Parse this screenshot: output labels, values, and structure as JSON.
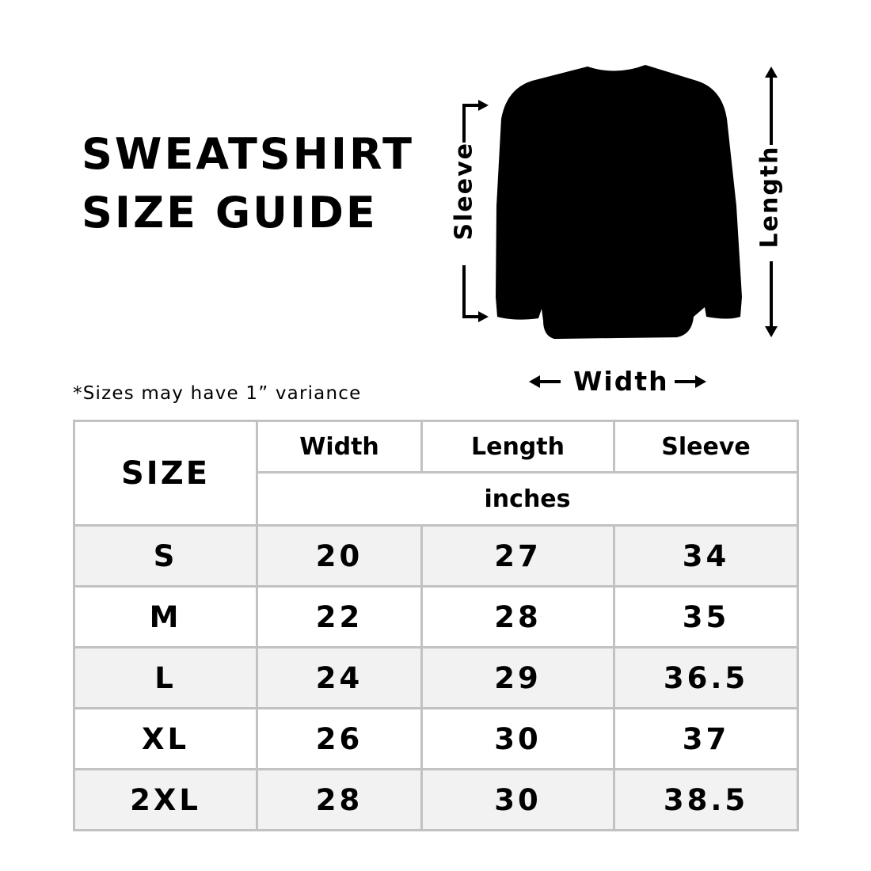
{
  "title": {
    "line1": "SWEATSHIRT",
    "line2": "SIZE GUIDE"
  },
  "diagram": {
    "sleeve_label": "Sleeve",
    "length_label": "Length",
    "width_label": "Width",
    "garment_color": "#000000"
  },
  "note": "*Sizes may have 1” variance",
  "table": {
    "size_header": "SIZE",
    "columns": [
      "Width",
      "Length",
      "Sleeve"
    ],
    "units": "inches",
    "rows": [
      {
        "size": "S",
        "width": "20",
        "length": "27",
        "sleeve": "34"
      },
      {
        "size": "M",
        "width": "22",
        "length": "28",
        "sleeve": "35"
      },
      {
        "size": "L",
        "width": "24",
        "length": "29",
        "sleeve": "36.5"
      },
      {
        "size": "XL",
        "width": "26",
        "length": "30",
        "sleeve": "37"
      },
      {
        "size": "2XL",
        "width": "28",
        "length": "30",
        "sleeve": "38.5"
      }
    ],
    "border_color": "#c2c2c2",
    "stripe_color": "#f2f2f2"
  }
}
